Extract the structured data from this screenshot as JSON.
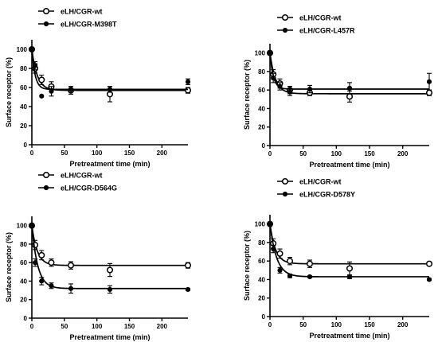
{
  "chart_data": [
    {
      "type": "scatter",
      "xlabel": "Pretreatment time (min)",
      "ylabel": "Surface receptor (%)",
      "xlim": [
        0,
        240
      ],
      "ylim": [
        0,
        110
      ],
      "xticks": [
        "0",
        "50",
        "100",
        "150",
        "200"
      ],
      "yticks": [
        "0",
        "20",
        "40",
        "60",
        "80",
        "100"
      ],
      "legend_position": "top-left",
      "series": [
        {
          "name": "eLH/CGR-wt",
          "marker": "open-circle",
          "x": [
            0,
            5,
            15,
            30,
            60,
            120,
            240
          ],
          "y": [
            100,
            80,
            68,
            61,
            57,
            53,
            57
          ],
          "err": [
            0,
            5,
            5,
            5,
            4,
            8,
            3
          ],
          "plateau": 57,
          "k": 0.12
        },
        {
          "name": "eLH/CGR-M398T",
          "marker": "filled-circle",
          "x": [
            0,
            5,
            15,
            30,
            60,
            120,
            240
          ],
          "y": [
            100,
            83,
            51,
            56,
            58,
            58,
            66
          ],
          "err": [
            0,
            4,
            0,
            5,
            3,
            3,
            3
          ],
          "plateau": 58,
          "k": 0.2
        }
      ]
    },
    {
      "type": "scatter",
      "xlabel": "Pretreatment time (min)",
      "ylabel": "Surface receptor (%)",
      "xlim": [
        0,
        240
      ],
      "ylim": [
        0,
        110
      ],
      "xticks": [
        "0",
        "50",
        "100",
        "150",
        "200"
      ],
      "yticks": [
        "0",
        "20",
        "40",
        "60",
        "80",
        "100"
      ],
      "legend_position": "top-right",
      "series": [
        {
          "name": "eLH/CGR-wt",
          "marker": "open-circle",
          "x": [
            0,
            5,
            15,
            30,
            60,
            120,
            240
          ],
          "y": [
            100,
            77,
            67,
            60,
            57,
            53,
            57
          ],
          "err": [
            0,
            5,
            5,
            4,
            3,
            6,
            3
          ],
          "plateau": 56,
          "k": 0.12
        },
        {
          "name": "eLH/CGR-L457R",
          "marker": "filled-circle",
          "x": [
            0,
            5,
            15,
            30,
            60,
            120,
            240
          ],
          "y": [
            100,
            73,
            64,
            58,
            61,
            62,
            69
          ],
          "err": [
            0,
            5,
            4,
            4,
            4,
            6,
            9
          ],
          "plateau": 61,
          "k": 0.2
        }
      ]
    },
    {
      "type": "scatter",
      "xlabel": "Pretreatment time (min)",
      "ylabel": "Surface receptor (%)",
      "xlim": [
        0,
        240
      ],
      "ylim": [
        0,
        110
      ],
      "xticks": [
        "0",
        "50",
        "100",
        "150",
        "200"
      ],
      "yticks": [
        "0",
        "20",
        "40",
        "60",
        "80",
        "100"
      ],
      "legend_position": "top-left",
      "series": [
        {
          "name": "eLH/CGR-wt",
          "marker": "open-circle",
          "x": [
            0,
            5,
            15,
            30,
            60,
            120,
            240
          ],
          "y": [
            100,
            79,
            68,
            60,
            57,
            52,
            57
          ],
          "err": [
            0,
            5,
            5,
            4,
            4,
            7,
            3
          ],
          "plateau": 57,
          "k": 0.12
        },
        {
          "name": "eLH/CGR-D564G",
          "marker": "filled-circle",
          "x": [
            0,
            5,
            15,
            30,
            60,
            120,
            240
          ],
          "y": [
            100,
            60,
            40,
            35,
            32,
            31,
            31
          ],
          "err": [
            0,
            4,
            4,
            3,
            5,
            4,
            1
          ],
          "plateau": 32,
          "k": 0.11
        }
      ]
    },
    {
      "type": "scatter",
      "xlabel": "Pretreatment time (min)",
      "ylabel": "Surface receptor (%)",
      "xlim": [
        0,
        240
      ],
      "ylim": [
        0,
        110
      ],
      "xticks": [
        "0",
        "50",
        "100",
        "150",
        "200"
      ],
      "yticks": [
        "0",
        "20",
        "40",
        "60",
        "80",
        "100"
      ],
      "legend_position": "top-right",
      "series": [
        {
          "name": "eLH/CGR-wt",
          "marker": "open-circle",
          "x": [
            0,
            5,
            15,
            30,
            60,
            120,
            240
          ],
          "y": [
            100,
            79,
            68,
            60,
            57,
            52,
            57
          ],
          "err": [
            0,
            5,
            5,
            4,
            4,
            7,
            2
          ],
          "plateau": 57,
          "k": 0.12
        },
        {
          "name": "eLH/CGR-D578Y",
          "marker": "filled-circle",
          "x": [
            0,
            5,
            15,
            30,
            60,
            120,
            240
          ],
          "y": [
            100,
            73,
            50,
            44,
            43,
            43,
            40
          ],
          "err": [
            0,
            4,
            3,
            2,
            1,
            2,
            1
          ],
          "plateau": 43,
          "k": 0.1
        }
      ]
    }
  ]
}
